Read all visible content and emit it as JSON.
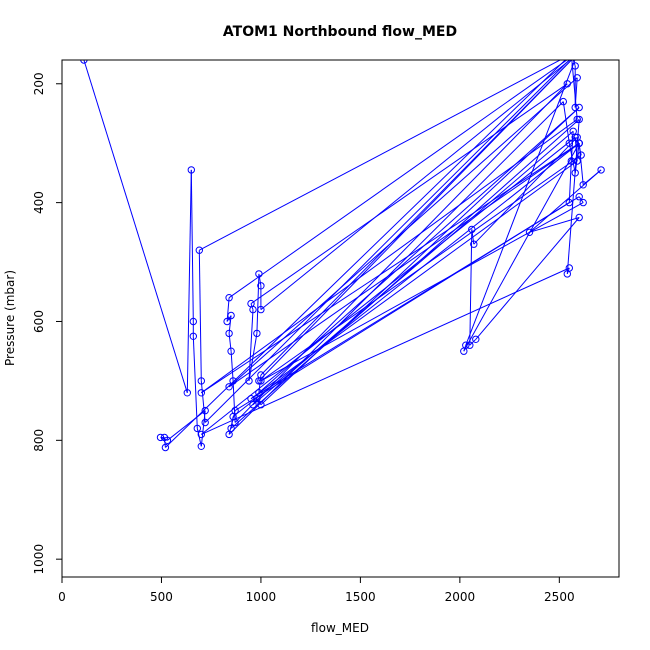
{
  "chart_data": {
    "type": "line",
    "title": "ATOM1 Northbound flow_MED",
    "xlabel": "flow_MED",
    "ylabel": "Pressure (mbar)",
    "xlim": [
      0,
      2800
    ],
    "ylim": [
      1030,
      160
    ],
    "y_reversed": true,
    "x_ticks": [
      0,
      500,
      1000,
      1500,
      2000,
      2500
    ],
    "y_ticks": [
      200,
      400,
      600,
      800,
      1000
    ],
    "grid": false,
    "legend": "none",
    "series_color": "#0000FF",
    "point_marker": "open-circle",
    "points": [
      [
        110,
        160
      ],
      [
        630,
        720
      ],
      [
        650,
        345
      ],
      [
        660,
        600
      ],
      [
        660,
        625
      ],
      [
        680,
        780
      ],
      [
        700,
        810
      ],
      [
        720,
        750
      ],
      [
        530,
        800
      ],
      [
        495,
        795
      ],
      [
        515,
        795
      ],
      [
        520,
        812
      ],
      [
        2560,
        150
      ],
      [
        690,
        480
      ],
      [
        700,
        700
      ],
      [
        720,
        770
      ],
      [
        2580,
        150
      ],
      [
        840,
        560
      ],
      [
        830,
        600
      ],
      [
        850,
        590
      ],
      [
        840,
        620
      ],
      [
        850,
        650
      ],
      [
        860,
        700
      ],
      [
        870,
        770
      ],
      [
        2540,
        200
      ],
      [
        950,
        570
      ],
      [
        960,
        580
      ],
      [
        940,
        700
      ],
      [
        980,
        620
      ],
      [
        990,
        520
      ],
      [
        1000,
        540
      ],
      [
        1000,
        580
      ],
      [
        2590,
        150
      ],
      [
        1000,
        690
      ],
      [
        990,
        720
      ],
      [
        2600,
        240
      ],
      [
        1000,
        740
      ],
      [
        980,
        730
      ],
      [
        960,
        740
      ],
      [
        2570,
        280
      ],
      [
        2560,
        330
      ],
      [
        2550,
        400
      ],
      [
        870,
        750
      ],
      [
        840,
        790
      ],
      [
        2520,
        230
      ],
      [
        2550,
        300
      ],
      [
        2580,
        350
      ],
      [
        2600,
        300
      ],
      [
        860,
        760
      ],
      [
        850,
        780
      ],
      [
        2600,
        260
      ],
      [
        2540,
        520
      ],
      [
        2550,
        510
      ],
      [
        700,
        790
      ],
      [
        2580,
        290
      ],
      [
        2590,
        330
      ],
      [
        950,
        730
      ],
      [
        2600,
        390
      ],
      [
        2620,
        400
      ],
      [
        1000,
        700
      ],
      [
        2610,
        320
      ],
      [
        2590,
        290
      ],
      [
        2070,
        470
      ],
      [
        2060,
        445
      ],
      [
        2050,
        640
      ],
      [
        2080,
        630
      ],
      [
        2600,
        425
      ],
      [
        2350,
        450
      ],
      [
        2710,
        345
      ],
      [
        2620,
        370
      ],
      [
        2600,
        300
      ],
      [
        700,
        720
      ],
      [
        2590,
        260
      ],
      [
        2560,
        150
      ],
      [
        2580,
        170
      ],
      [
        2580,
        240
      ],
      [
        2590,
        190
      ],
      [
        840,
        710
      ],
      [
        2600,
        300
      ],
      [
        2020,
        650
      ],
      [
        2030,
        640
      ],
      [
        2590,
        150
      ],
      [
        990,
        700
      ]
    ]
  }
}
